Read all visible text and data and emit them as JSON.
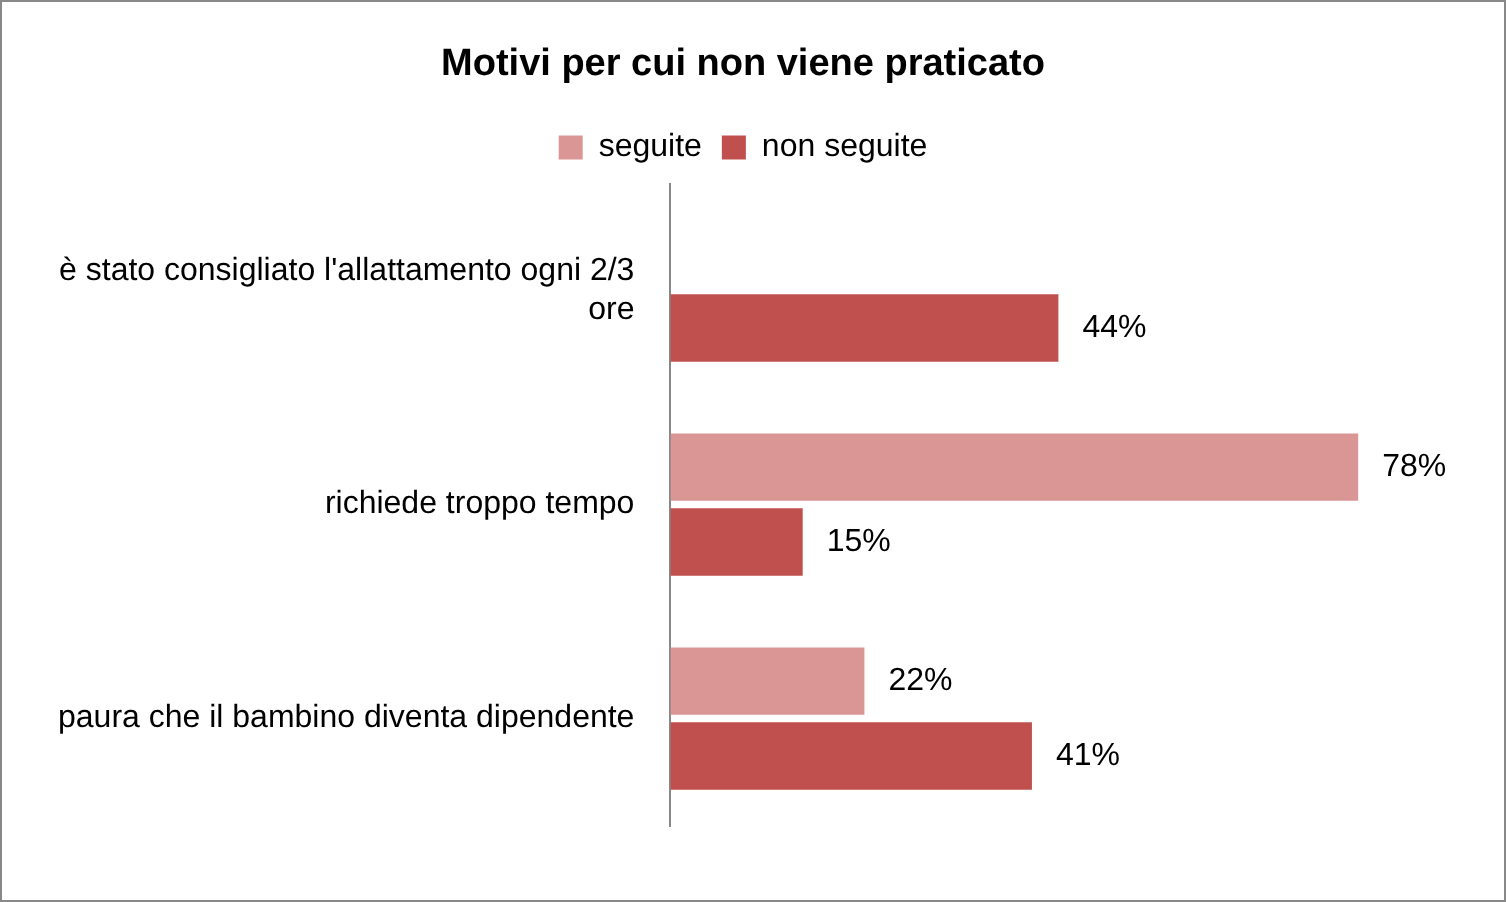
{
  "chart_data": {
    "type": "bar",
    "orientation": "horizontal",
    "title": "Motivi per cui non viene praticato",
    "categories": [
      "è stato consigliato l'allattamento ogni 2/3 ore",
      "richiede troppo tempo",
      "paura che il bambino diventa dipendente"
    ],
    "series": [
      {
        "name": "seguite",
        "color": "#d99694",
        "values": [
          null,
          78,
          22
        ],
        "value_labels": [
          null,
          "78%",
          "22%"
        ]
      },
      {
        "name": "non seguite",
        "color": "#c0504d",
        "values": [
          44,
          15,
          41
        ],
        "value_labels": [
          "44%",
          "15%",
          "41%"
        ]
      }
    ],
    "legend": "top"
  }
}
